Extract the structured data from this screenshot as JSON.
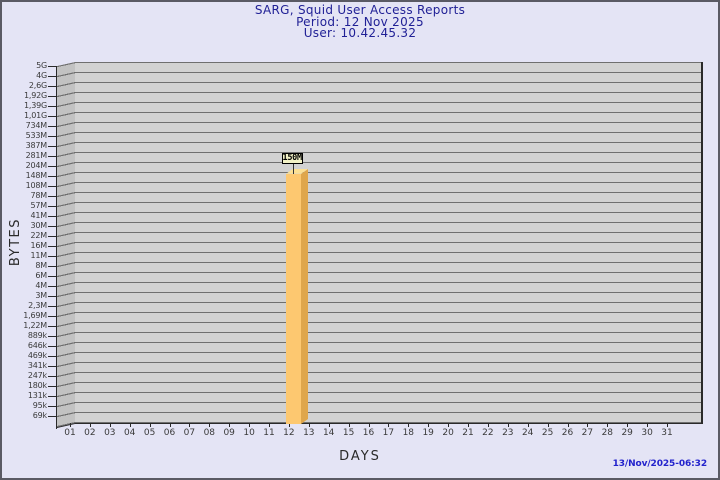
{
  "title": {
    "line1": "SARG, Squid User Access Reports",
    "line2": "Period: 12 Nov 2025",
    "line3": "User: 10.42.45.32"
  },
  "footer": {
    "timestamp": "13/Nov/2025-06:32"
  },
  "chart_data": {
    "type": "bar",
    "title": "SARG, Squid User Access Reports",
    "subtitle": [
      "Period: 12 Nov 2025",
      "User: 10.42.45.32"
    ],
    "xlabel": "DAYS",
    "ylabel": "BYTES",
    "scale": "logarithmic",
    "grid": true,
    "style": "3d-bar",
    "categories": [
      "01",
      "02",
      "03",
      "04",
      "05",
      "06",
      "07",
      "08",
      "09",
      "10",
      "11",
      "12",
      "13",
      "14",
      "15",
      "16",
      "17",
      "18",
      "19",
      "20",
      "21",
      "22",
      "23",
      "24",
      "25",
      "26",
      "27",
      "28",
      "29",
      "30",
      "31"
    ],
    "values": [
      0,
      0,
      0,
      0,
      0,
      0,
      0,
      0,
      0,
      0,
      0,
      150000000,
      0,
      0,
      0,
      0,
      0,
      0,
      0,
      0,
      0,
      0,
      0,
      0,
      0,
      0,
      0,
      0,
      0,
      0,
      0
    ],
    "bars": [
      {
        "day": "12",
        "label": "150M",
        "value_bytes": 150000000
      }
    ],
    "y_ticks": [
      "5G",
      "4G",
      "2,6G",
      "1,92G",
      "1,39G",
      "1,01G",
      "734M",
      "533M",
      "387M",
      "281M",
      "204M",
      "148M",
      "108M",
      "78M",
      "57M",
      "41M",
      "30M",
      "22M",
      "16M",
      "11M",
      "8M",
      "6M",
      "4M",
      "3M",
      "2,3M",
      "1,69M",
      "1,22M",
      "889k",
      "646k",
      "469k",
      "341k",
      "247k",
      "180k",
      "131k",
      "95k",
      "69k"
    ],
    "y_axis_bottom": "69k",
    "y_axis_top": "5G"
  },
  "colors": {
    "background": "#E4E4F5",
    "border": "#5A5A64",
    "title_text": "#212196",
    "plot_band": "#D2D2D2",
    "grid_line": "#6F6F6F",
    "wall": "#C2C2C2",
    "edge": "#2A2A2A",
    "bar_front": "#FDC870",
    "bar_side": "#DFA64B",
    "bar_top": "#FCE093",
    "bar_label_bg": "#F2F2C6",
    "timestamp_text": "#2222CC",
    "axis_text": "#3A3A3A"
  }
}
